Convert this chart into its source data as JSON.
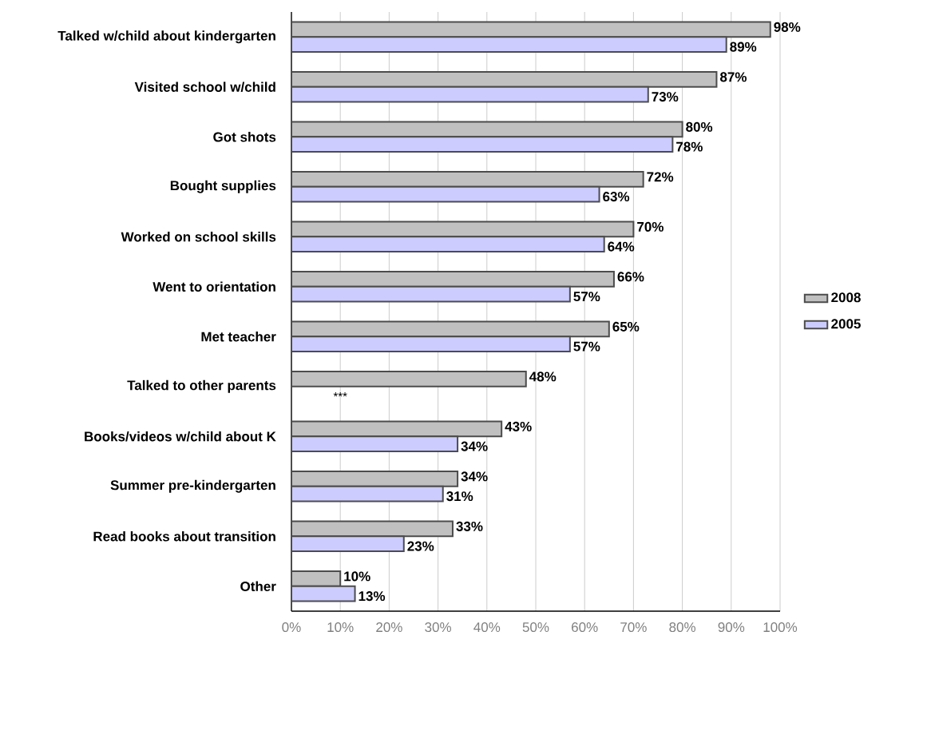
{
  "chart_data": {
    "type": "bar",
    "orientation": "horizontal",
    "categories": [
      "Talked w/child about kindergarten",
      "Visited school w/child",
      "Got shots",
      "Bought supplies",
      "Worked on school skills",
      "Went to orientation",
      "Met teacher",
      "Talked to other parents",
      "Books/videos w/child about K",
      "Summer pre-kindergarten",
      "Read books about transition",
      "Other"
    ],
    "series": [
      {
        "name": "2008",
        "color": "#c0c0c0",
        "values": [
          98,
          87,
          80,
          72,
          70,
          66,
          65,
          48,
          43,
          34,
          33,
          10
        ],
        "value_labels": [
          "98%",
          "87%",
          "80%",
          "72%",
          "70%",
          "66%",
          "65%",
          "48%",
          "43%",
          "34%",
          "33%",
          "10%"
        ]
      },
      {
        "name": "2005",
        "color": "#ccccff",
        "values": [
          89,
          73,
          78,
          63,
          64,
          57,
          57,
          null,
          34,
          31,
          23,
          13
        ],
        "value_labels": [
          "89%",
          "73%",
          "78%",
          "63%",
          "64%",
          "57%",
          "57%",
          null,
          "34%",
          "31%",
          "23%",
          "13%"
        ]
      }
    ],
    "xlim": [
      0,
      100
    ],
    "xticks": [
      {
        "value": 0,
        "label": "0%"
      },
      {
        "value": 10,
        "label": "10%"
      },
      {
        "value": 20,
        "label": "20%"
      },
      {
        "value": 30,
        "label": "30%"
      },
      {
        "value": 40,
        "label": "40%"
      },
      {
        "value": 50,
        "label": "50%"
      },
      {
        "value": 60,
        "label": "60%"
      },
      {
        "value": 70,
        "label": "70%"
      },
      {
        "value": 80,
        "label": "80%"
      },
      {
        "value": 90,
        "label": "90%"
      },
      {
        "value": 100,
        "label": "100%"
      }
    ],
    "grid": "x",
    "legend": "right",
    "annotations": [
      {
        "text": "***",
        "x": 10,
        "y": "Talked to other parents"
      }
    ]
  }
}
